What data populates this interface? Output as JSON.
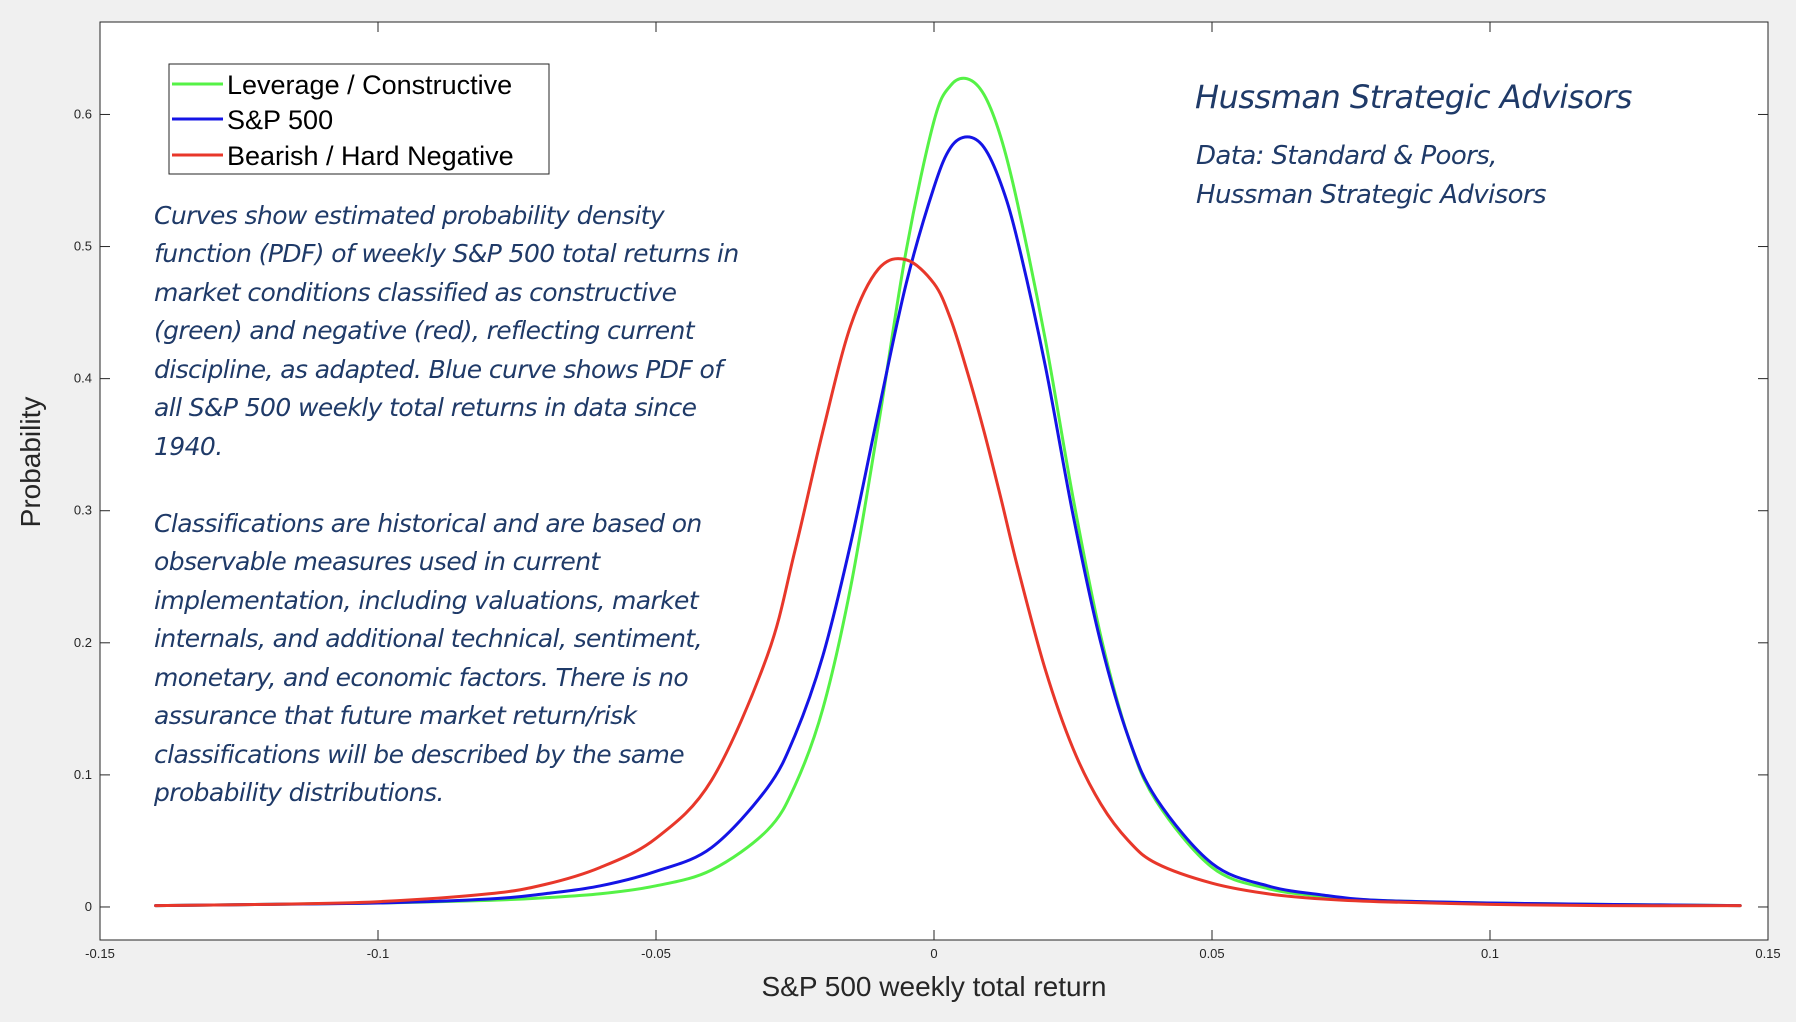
{
  "chart_data": {
    "type": "line",
    "xlabel": "S&P 500 weekly total return",
    "ylabel": "Probability",
    "xlim": [
      -0.15,
      0.15
    ],
    "ylim": [
      -0.025,
      0.67
    ],
    "x_ticks": [
      -0.15,
      -0.1,
      -0.05,
      0,
      0.05,
      0.1,
      0.15
    ],
    "x_tick_labels": [
      "-0.15",
      "-0.1",
      "-0.05",
      "0",
      "0.05",
      "0.1",
      "0.15"
    ],
    "y_ticks": [
      0,
      0.1,
      0.2,
      0.3,
      0.4,
      0.5,
      0.6
    ],
    "y_tick_labels": [
      "0",
      "0.1",
      "0.2",
      "0.3",
      "0.4",
      "0.5",
      "0.6"
    ],
    "grid": false,
    "legend_position": "top-left",
    "x": [
      -0.14,
      -0.12,
      -0.1,
      -0.08,
      -0.07,
      -0.06,
      -0.05,
      -0.04,
      -0.03,
      -0.025,
      -0.02,
      -0.015,
      -0.01,
      -0.005,
      0,
      0.003,
      0.006,
      0.009,
      0.012,
      0.015,
      0.02,
      0.025,
      0.03,
      0.035,
      0.04,
      0.05,
      0.06,
      0.07,
      0.08,
      0.1,
      0.12,
      0.145
    ],
    "series": [
      {
        "name": "Leverage / Constructive",
        "color": "#55f246",
        "values": [
          0.001,
          0.002,
          0.003,
          0.005,
          0.007,
          0.01,
          0.016,
          0.028,
          0.058,
          0.092,
          0.15,
          0.242,
          0.365,
          0.497,
          0.595,
          0.622,
          0.627,
          0.615,
          0.583,
          0.533,
          0.43,
          0.31,
          0.205,
          0.128,
          0.08,
          0.03,
          0.014,
          0.008,
          0.005,
          0.003,
          0.002,
          0.001
        ]
      },
      {
        "name": "S&P 500",
        "color": "#1414e6",
        "values": [
          0.001,
          0.002,
          0.003,
          0.006,
          0.01,
          0.016,
          0.027,
          0.045,
          0.09,
          0.13,
          0.19,
          0.275,
          0.375,
          0.472,
          0.545,
          0.575,
          0.583,
          0.575,
          0.548,
          0.505,
          0.41,
          0.297,
          0.2,
          0.128,
          0.082,
          0.033,
          0.016,
          0.009,
          0.005,
          0.003,
          0.002,
          0.001
        ]
      },
      {
        "name": "Bearish / Hard Negative",
        "color": "#e8372a",
        "values": [
          0.001,
          0.002,
          0.004,
          0.01,
          0.017,
          0.03,
          0.052,
          0.096,
          0.19,
          0.27,
          0.36,
          0.44,
          0.483,
          0.49,
          0.472,
          0.445,
          0.405,
          0.36,
          0.31,
          0.258,
          0.18,
          0.12,
          0.078,
          0.05,
          0.033,
          0.018,
          0.01,
          0.006,
          0.004,
          0.002,
          0.001,
          0.001
        ]
      }
    ]
  },
  "branding": {
    "title": "Hussman Strategic Advisors",
    "source_lines": [
      "Data: Standard & Poors,",
      "Hussman Strategic Advisors"
    ]
  },
  "annotation": {
    "paragraph1": [
      "Curves show estimated probability density",
      "function (PDF) of weekly S&P 500 total returns in",
      "market conditions classified as constructive",
      "(green) and negative (red), reflecting current",
      "discipline, as adapted. Blue curve shows PDF of",
      "all S&P 500 weekly total returns in data since",
      "1940."
    ],
    "paragraph2": [
      "Classifications are historical and are based on",
      "observable measures used in current",
      "implementation, including valuations, market",
      "internals, and additional technical, sentiment,",
      "monetary, and economic factors. There is no",
      "assurance that future market return/risk",
      "classifications will be described by the same",
      "probability distributions."
    ]
  }
}
